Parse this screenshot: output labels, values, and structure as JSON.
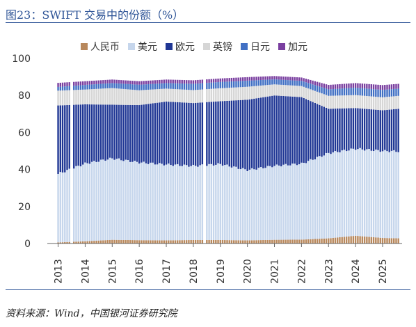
{
  "figure_title": "图23：SWIFT 交易中的份额（%）",
  "source_note": "资料来源：Wind，中国银河证券研究院",
  "chart_data": {
    "type": "bar",
    "stacked": true,
    "ylim": [
      0,
      100
    ],
    "yticks": [
      0,
      20,
      40,
      60,
      80,
      100
    ],
    "x_ticks": [
      "2013",
      "2014",
      "2015",
      "2016",
      "2017",
      "2018",
      "2019",
      "2020",
      "2021",
      "2022",
      "2023",
      "2024",
      "2025"
    ],
    "legend_position": "top",
    "grid": false,
    "series": [
      {
        "name": "人民币",
        "color": "#b8885c"
      },
      {
        "name": "美元",
        "color": "#c6d6ec"
      },
      {
        "name": "欧元",
        "color": "#1f3694"
      },
      {
        "name": "英镑",
        "color": "#d6d6d6"
      },
      {
        "name": "日元",
        "color": "#4170c4"
      },
      {
        "name": "加元",
        "color": "#7a3fa0"
      }
    ],
    "anchors": [
      {
        "x": 2013.0,
        "cny": 0.6,
        "usd": 37,
        "eur": 37,
        "gbp": 8,
        "jpy": 2.0,
        "cad": 2.2
      },
      {
        "x": 2014.0,
        "cny": 1.2,
        "usd": 42,
        "eur": 32,
        "gbp": 8,
        "jpy": 2.5,
        "cad": 2.0
      },
      {
        "x": 2015.0,
        "cny": 2.0,
        "usd": 44,
        "eur": 29,
        "gbp": 9,
        "jpy": 2.7,
        "cad": 1.9
      },
      {
        "x": 2016.0,
        "cny": 1.8,
        "usd": 42,
        "eur": 31,
        "gbp": 8,
        "jpy": 3.0,
        "cad": 1.9
      },
      {
        "x": 2017.0,
        "cny": 1.7,
        "usd": 41,
        "eur": 34,
        "gbp": 7,
        "jpy": 3.0,
        "cad": 1.9
      },
      {
        "x": 2018.0,
        "cny": 1.9,
        "usd": 40,
        "eur": 34,
        "gbp": 7,
        "jpy": 3.4,
        "cad": 1.9
      },
      {
        "x": 2019.0,
        "cny": 1.9,
        "usd": 41,
        "eur": 34,
        "gbp": 7,
        "jpy": 3.4,
        "cad": 1.9
      },
      {
        "x": 2020.0,
        "cny": 1.7,
        "usd": 38,
        "eur": 38,
        "gbp": 7,
        "jpy": 3.3,
        "cad": 1.9
      },
      {
        "x": 2021.0,
        "cny": 2.0,
        "usd": 40,
        "eur": 38,
        "gbp": 6,
        "jpy": 2.7,
        "cad": 1.8
      },
      {
        "x": 2022.0,
        "cny": 2.1,
        "usd": 41,
        "eur": 36,
        "gbp": 6,
        "jpy": 2.8,
        "cad": 1.8
      },
      {
        "x": 2023.0,
        "cny": 2.8,
        "usd": 46,
        "eur": 24,
        "gbp": 7,
        "jpy": 3.5,
        "cad": 2.4
      },
      {
        "x": 2024.0,
        "cny": 4.2,
        "usd": 47,
        "eur": 22,
        "gbp": 7,
        "jpy": 4.0,
        "cad": 2.5
      },
      {
        "x": 2025.0,
        "cny": 3.0,
        "usd": 47,
        "eur": 22,
        "gbp": 7,
        "jpy": 4.0,
        "cad": 2.6
      },
      {
        "x": 2025.6,
        "cny": 2.8,
        "usd": 47,
        "eur": 23,
        "gbp": 7,
        "jpy": 3.9,
        "cad": 2.6
      }
    ]
  }
}
